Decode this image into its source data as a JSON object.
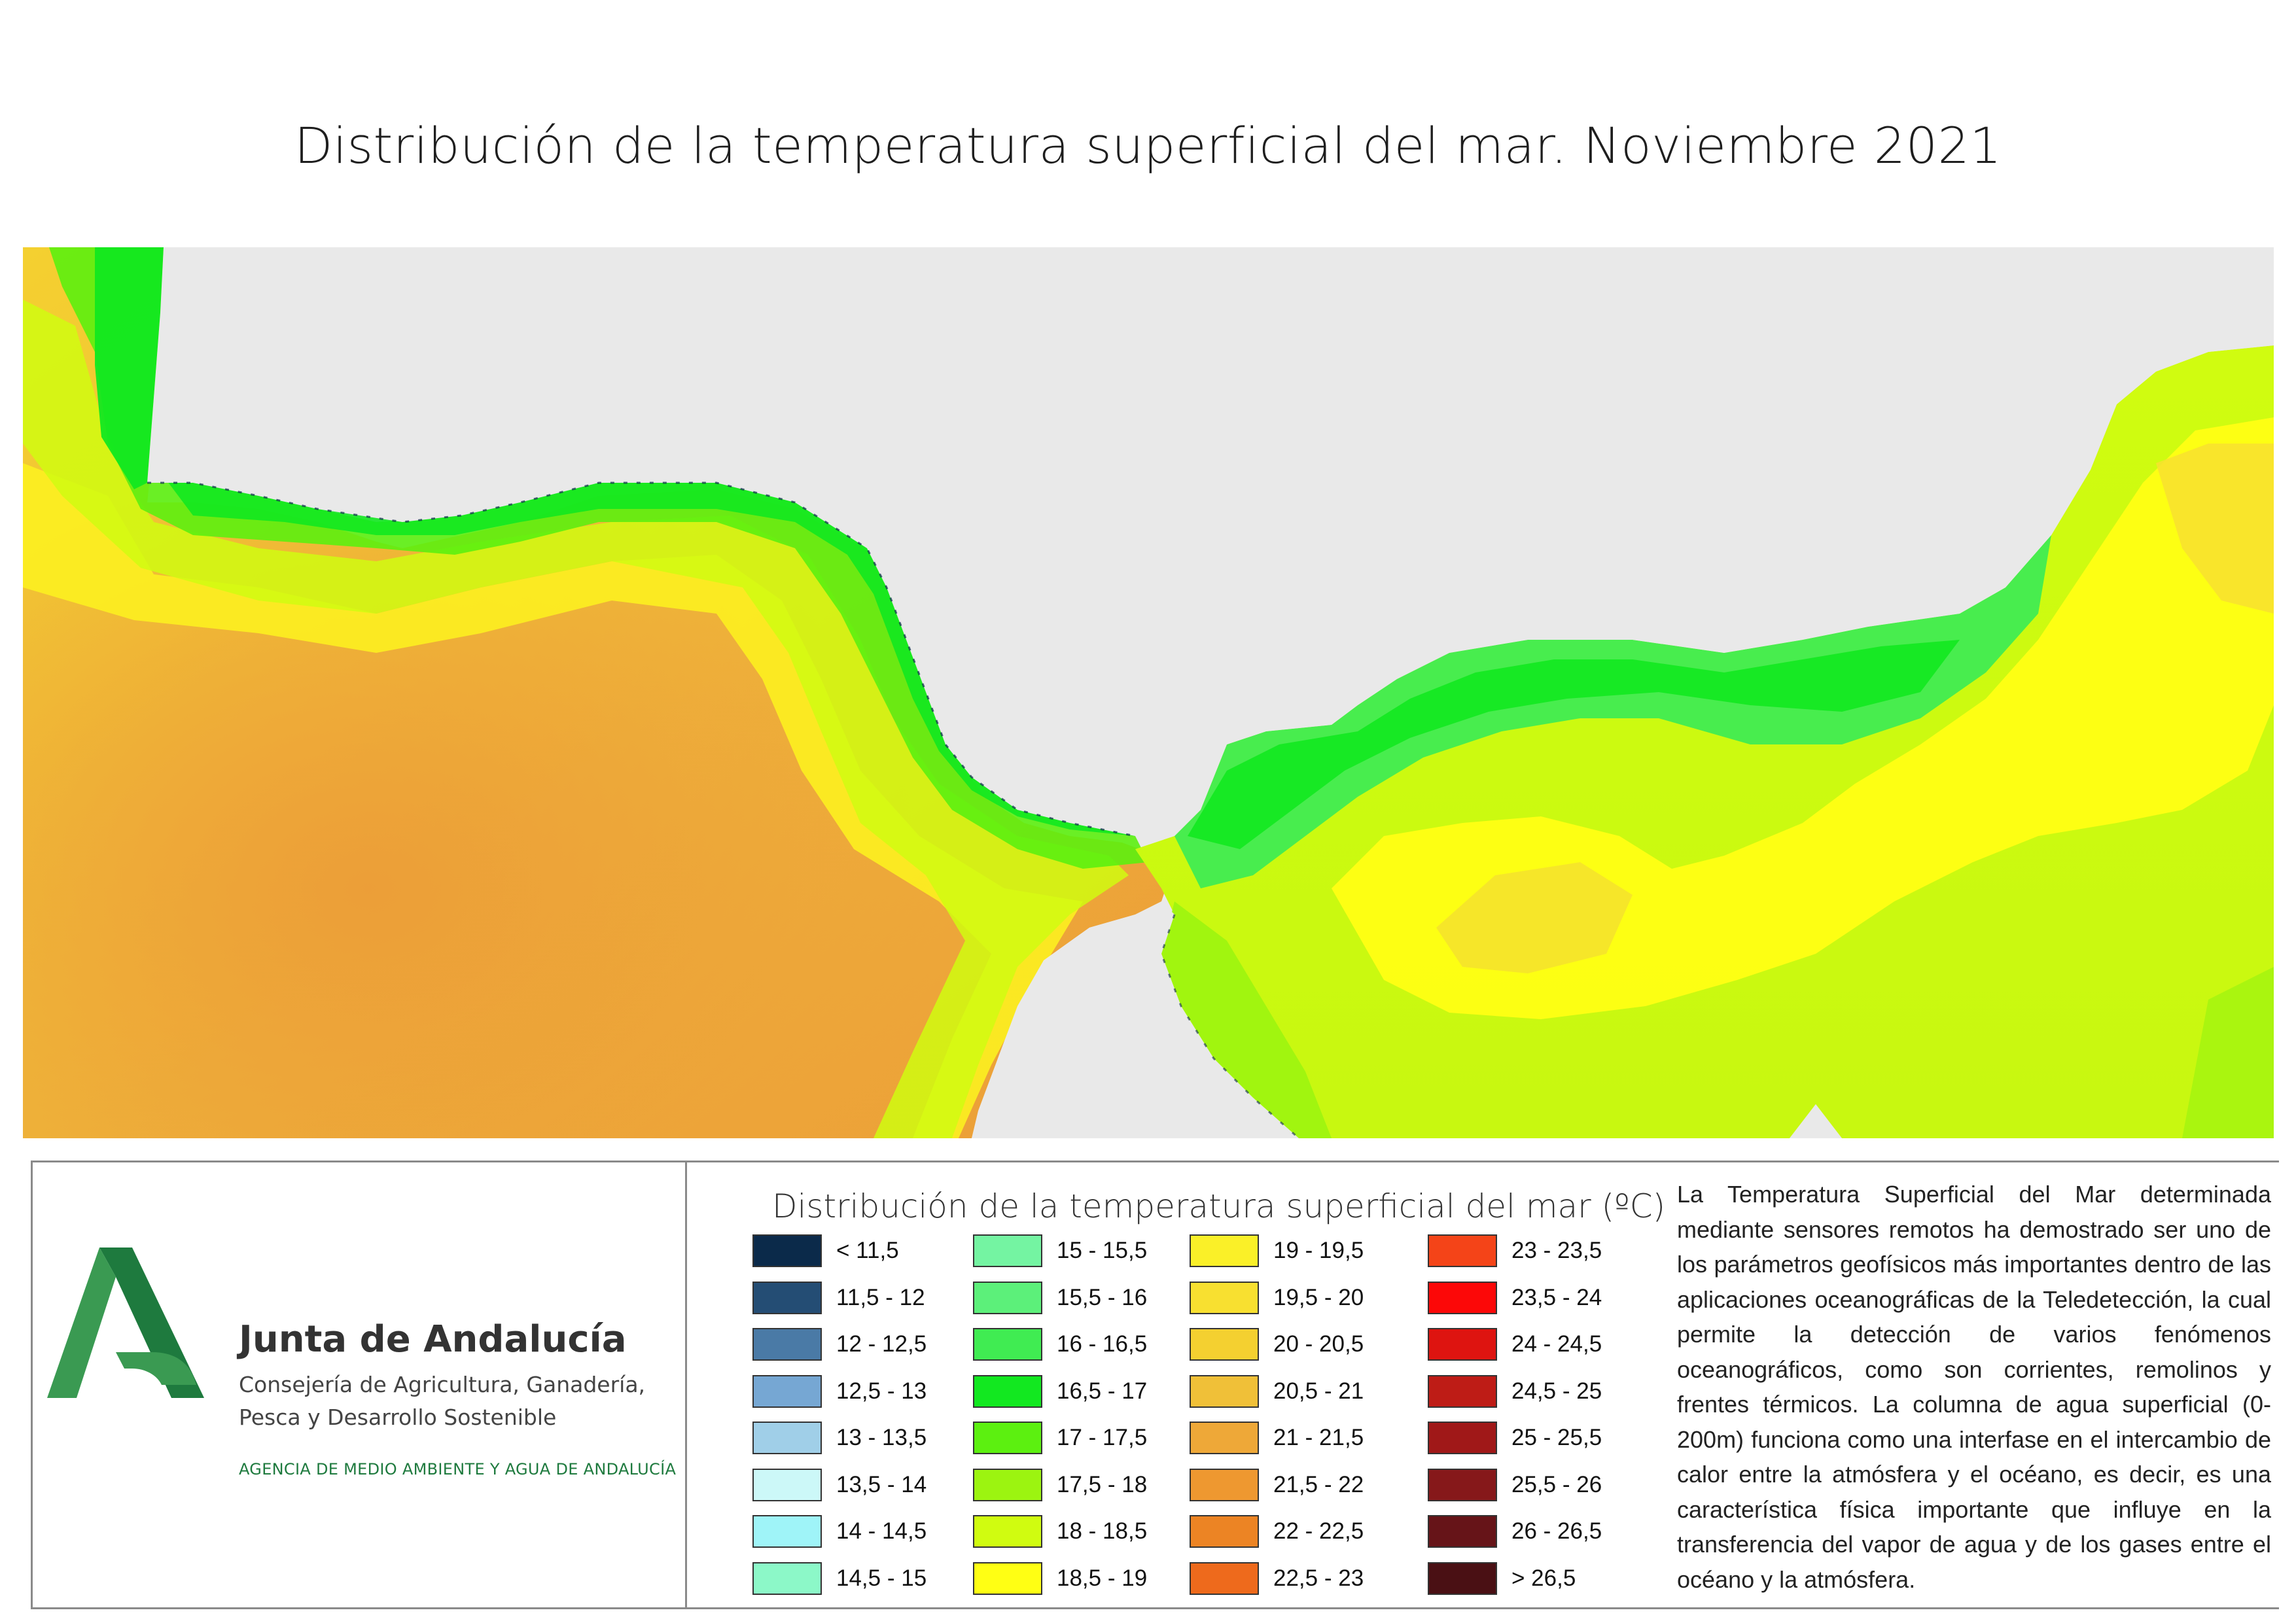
{
  "title": "Distribución de la temperatura superficial del mar. Noviembre 2021",
  "colors": {
    "land": "#e9e9e9",
    "brand_green_dark": "#1e7a3e",
    "brand_green_light": "#3a9a52"
  },
  "organization": {
    "name": "Junta de Andalucía",
    "department_line1": "Consejería de Agricultura, Ganadería,",
    "department_line2": "Pesca y Desarrollo Sostenible",
    "agency": "AGENCIA DE MEDIO AMBIENTE Y AGUA DE ANDALUCÍA"
  },
  "legend": {
    "title": "Distribución de la temperatura superficial del mar  (ºC)",
    "items": [
      {
        "label": "< 11,5",
        "color": "#0b2a4a"
      },
      {
        "label": "11,5 - 12",
        "color": "#244d74"
      },
      {
        "label": "12 - 12,5",
        "color": "#4a7aa6"
      },
      {
        "label": "12,5 - 13",
        "color": "#76a7d3"
      },
      {
        "label": "13 - 13,5",
        "color": "#a0cfe8"
      },
      {
        "label": "13,5 - 14",
        "color": "#ccf8f8"
      },
      {
        "label": "14 - 14,5",
        "color": "#9ff4f8"
      },
      {
        "label": "14,5 - 15",
        "color": "#8cf8c8"
      },
      {
        "label": "15 - 15,5",
        "color": "#74f4a2"
      },
      {
        "label": "15,5 - 16",
        "color": "#5cf07a"
      },
      {
        "label": "16 - 16,5",
        "color": "#40ec52"
      },
      {
        "label": "16,5 - 17",
        "color": "#12e820"
      },
      {
        "label": "17 - 17,5",
        "color": "#5cf010"
      },
      {
        "label": "17,5 - 18",
        "color": "#9cf410"
      },
      {
        "label": "18 - 18,5",
        "color": "#d0fc10"
      },
      {
        "label": "18,5 - 19",
        "color": "#ffff14"
      },
      {
        "label": "19 - 19,5",
        "color": "#faf028"
      },
      {
        "label": "19,5 - 20",
        "color": "#f8e030"
      },
      {
        "label": "20 - 20,5",
        "color": "#f4d030"
      },
      {
        "label": "20,5 - 21",
        "color": "#f0c038"
      },
      {
        "label": "21 - 21,5",
        "color": "#eea838"
      },
      {
        "label": "21,5 - 22",
        "color": "#ee9830"
      },
      {
        "label": "22 - 22,5",
        "color": "#ec8424"
      },
      {
        "label": "22,5 - 23",
        "color": "#ee6a1c"
      },
      {
        "label": "23 - 23,5",
        "color": "#f44418"
      },
      {
        "label": "23,5 - 24",
        "color": "#fc0808"
      },
      {
        "label": "24 - 24,5",
        "color": "#de1410"
      },
      {
        "label": "24,5 - 25",
        "color": "#be1c16"
      },
      {
        "label": "25 - 25,5",
        "color": "#a01818"
      },
      {
        "label": "25,5 - 26",
        "color": "#86181a"
      },
      {
        "label": "26 - 26,5",
        "color": "#661418"
      },
      {
        "label": "> 26,5",
        "color": "#4a1014"
      }
    ]
  },
  "description": "La Temperatura Superficial del Mar determinada mediante sensores remotos ha demostrado ser uno de los parámetros geofísicos más importantes dentro de las aplicaciones oceanográficas de la Teledetección, la cual permite la detección de varios fenómenos oceanográficos, como son corrientes, remolinos y frentes térmicos. La columna de agua superficial (0-200m) funciona como una interfase en el intercambio de calor entre la atmósfera y el océano, es decir, es una característica física importante que influye en la transferencia del vapor de agua y de los gases entre el océano y la atmósfera."
}
